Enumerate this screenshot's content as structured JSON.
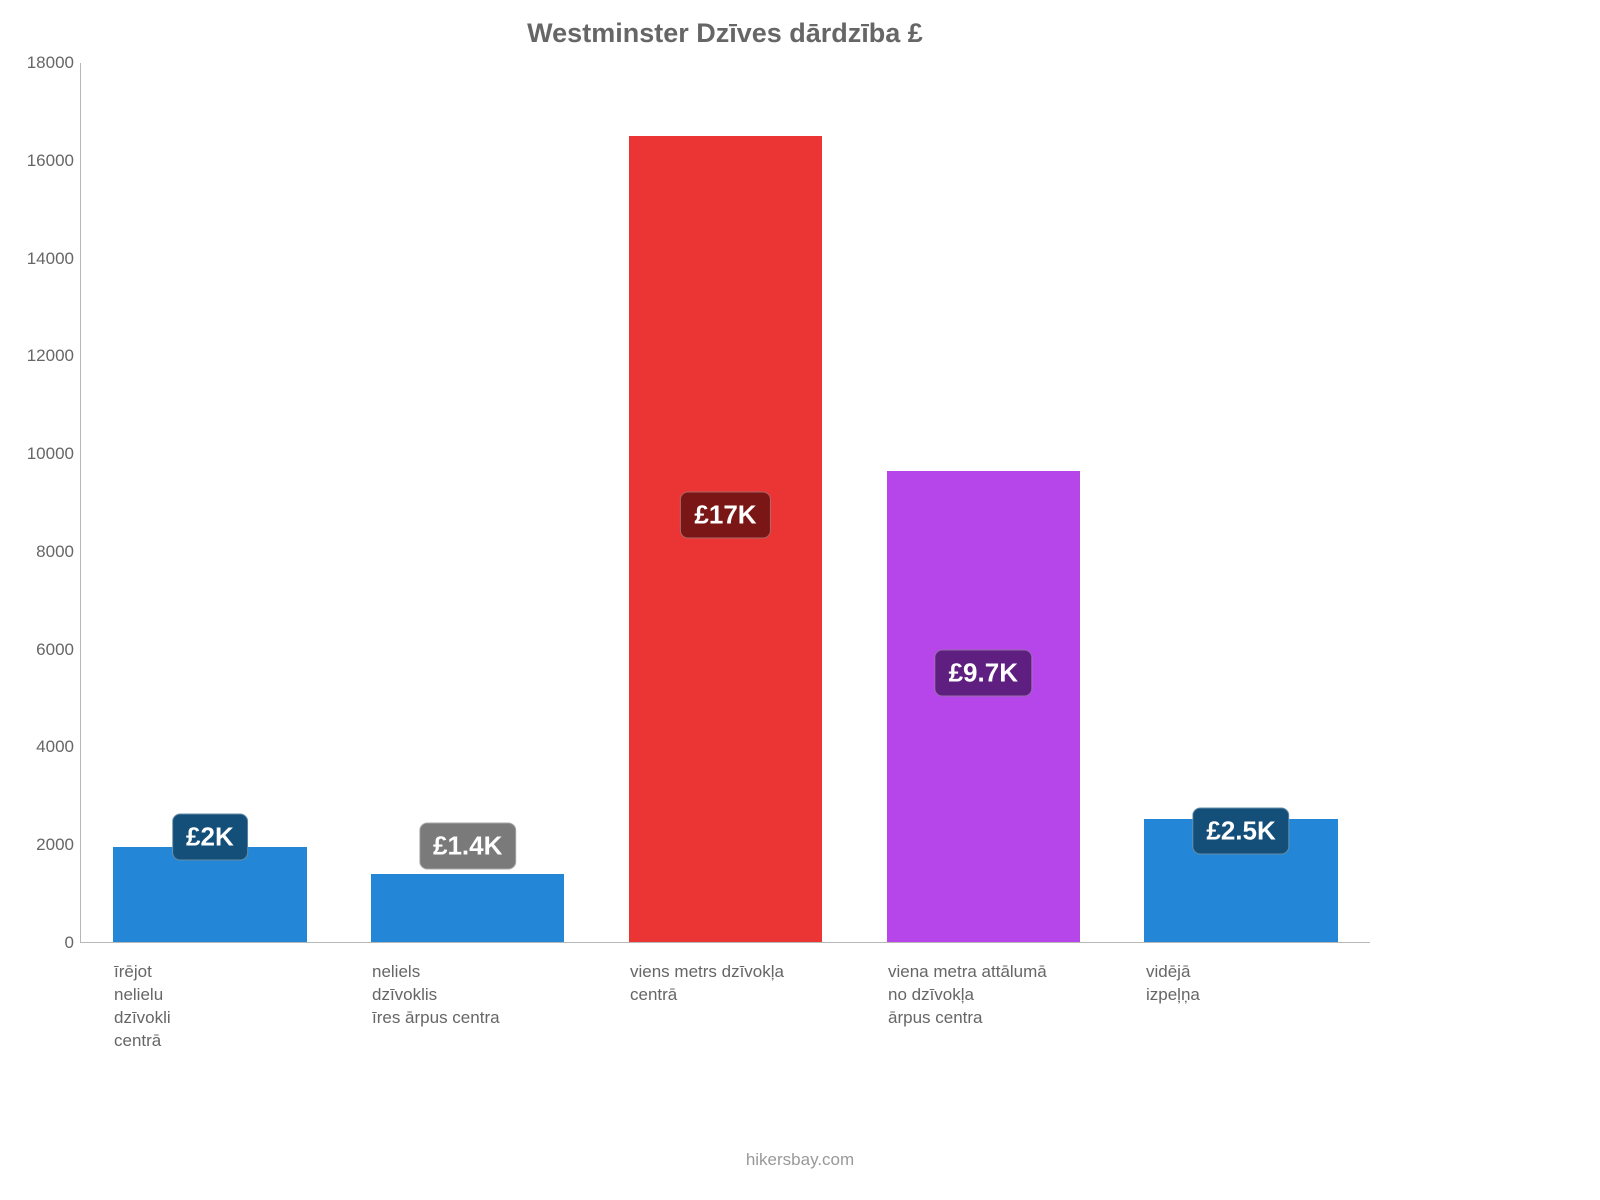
{
  "chart": {
    "type": "bar",
    "title": "Westminster Dzīves dārdzība £",
    "title_color": "#666666",
    "title_fontsize": 27,
    "background_color": "#ffffff",
    "axis_color": "#b7b7b7",
    "ylim": [
      0,
      18000
    ],
    "yticks": [
      0,
      2000,
      4000,
      6000,
      8000,
      10000,
      12000,
      14000,
      16000,
      18000
    ],
    "ytick_labels": [
      "0",
      "2000",
      "4000",
      "6000",
      "8000",
      "10000",
      "12000",
      "14000",
      "16000",
      "18000"
    ],
    "tick_color": "#666666",
    "tick_fontsize": 17,
    "bar_width_pct": 75,
    "bars": [
      {
        "category_lines": [
          "īrējot",
          "nelielu",
          "dzīvokli",
          "centrā"
        ],
        "value": 1950,
        "color": "#2386d6",
        "label": "£2K",
        "label_bg": "#144f79",
        "label_anchor_pct": 110
      },
      {
        "category_lines": [
          "neliels",
          "dzīvoklis",
          "īres ārpus centra"
        ],
        "value": 1400,
        "color": "#2386d6",
        "label": "£1.4K",
        "label_bg": "#7a7a7a",
        "label_anchor_pct": 140
      },
      {
        "category_lines": [
          "viens metrs dzīvokļa",
          "centrā"
        ],
        "value": 16500,
        "color": "#eb3434",
        "label": "£17K",
        "label_bg": "#7b1616",
        "label_anchor_pct": 53
      },
      {
        "category_lines": [
          "viena metra attālumā",
          "no dzīvokļa",
          "ārpus centra"
        ],
        "value": 9650,
        "color": "#b646e9",
        "label": "£9.7K",
        "label_bg": "#5e1f80",
        "label_anchor_pct": 57
      },
      {
        "category_lines": [
          "vidējā",
          "izpeļņa"
        ],
        "value": 2520,
        "color": "#2386d6",
        "label": "£2.5K",
        "label_bg": "#144f79",
        "label_anchor_pct": 90
      }
    ],
    "label_fontsize": 26,
    "footer": "hikersbay.com",
    "footer_color": "#999999"
  }
}
